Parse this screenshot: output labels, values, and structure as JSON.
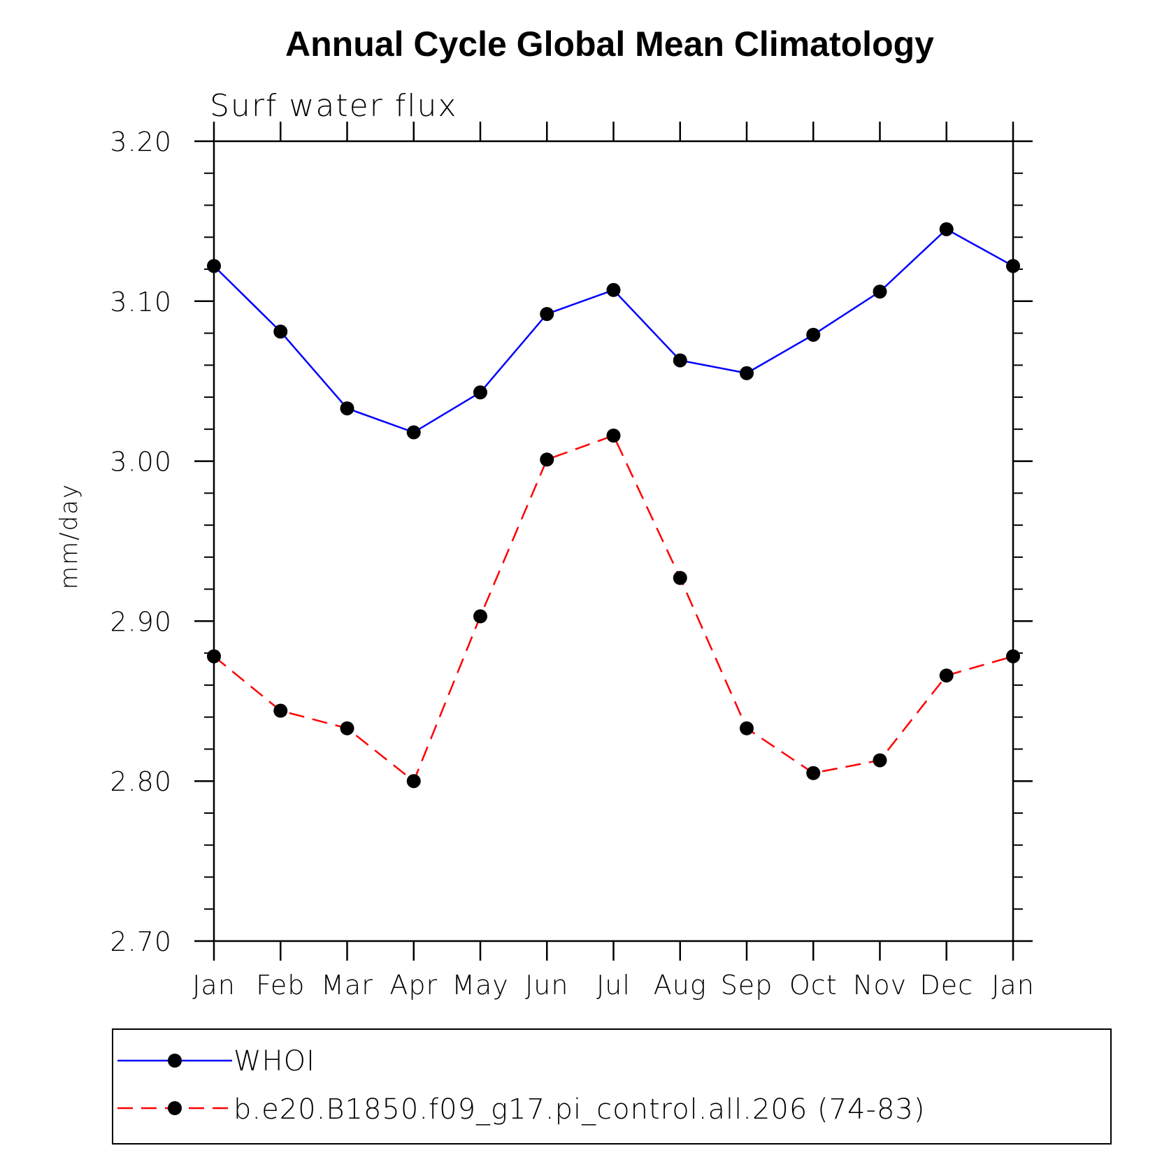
{
  "chart_data": {
    "type": "line",
    "title": "Annual Cycle Global Mean Climatology",
    "subtitle": "Surf  water  flux",
    "xlabel": "",
    "ylabel": "mm/day",
    "categories": [
      "Jan",
      "Feb",
      "Mar",
      "Apr",
      "May",
      "Jun",
      "Jul",
      "Aug",
      "Sep",
      "Oct",
      "Nov",
      "Dec",
      "Jan"
    ],
    "ylim": [
      2.7,
      3.2
    ],
    "yticks": [
      "3.20",
      "3.10",
      "3.00",
      "2.90",
      "2.80",
      "2.70"
    ],
    "grid": false,
    "legend_position": "bottom",
    "series": [
      {
        "name": "WHOI",
        "color": "#0000ff",
        "style": "solid",
        "marker": "circle",
        "values": [
          3.122,
          3.081,
          3.033,
          3.018,
          3.043,
          3.092,
          3.107,
          3.063,
          3.055,
          3.079,
          3.106,
          3.145,
          3.122
        ]
      },
      {
        "name": "b.e20.B1850.f09_g17.pi_control.all.206 (74-83)",
        "color": "#ff0000",
        "style": "dashed",
        "marker": "circle",
        "values": [
          2.878,
          2.844,
          2.833,
          2.8,
          2.903,
          3.001,
          3.016,
          2.927,
          2.833,
          2.805,
          2.813,
          2.866,
          2.878
        ]
      }
    ]
  }
}
